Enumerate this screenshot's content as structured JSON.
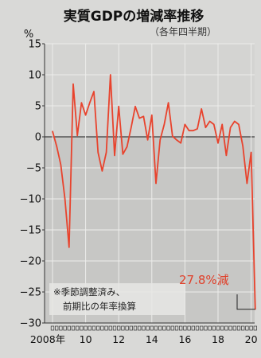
{
  "chart_data": {
    "type": "line",
    "title": "実質GDPの増減率推移",
    "subtitle": "（各年四半期）",
    "y_unit": "%",
    "ylim": [
      -30,
      15
    ],
    "y_ticks": [
      15,
      10,
      5,
      0,
      -5,
      -10,
      -15,
      -20,
      -25,
      -30
    ],
    "x_tick_labels": [
      "2008年",
      "10",
      "12",
      "14",
      "16",
      "18",
      "20"
    ],
    "x_tick_quarters": [
      0,
      8,
      16,
      24,
      32,
      40,
      48
    ],
    "grid": true,
    "series": [
      {
        "color": "#e8432d",
        "quarters": [
          "2008Q1",
          "2008Q2",
          "2008Q3",
          "2008Q4",
          "2009Q1",
          "2009Q2",
          "2009Q3",
          "2009Q4",
          "2010Q1",
          "2010Q2",
          "2010Q3",
          "2010Q4",
          "2011Q1",
          "2011Q2",
          "2011Q3",
          "2011Q4",
          "2012Q1",
          "2012Q2",
          "2012Q3",
          "2012Q4",
          "2013Q1",
          "2013Q2",
          "2013Q3",
          "2013Q4",
          "2014Q1",
          "2014Q2",
          "2014Q3",
          "2014Q4",
          "2015Q1",
          "2015Q2",
          "2015Q3",
          "2015Q4",
          "2016Q1",
          "2016Q2",
          "2016Q3",
          "2016Q4",
          "2017Q1",
          "2017Q2",
          "2017Q3",
          "2017Q4",
          "2018Q1",
          "2018Q2",
          "2018Q3",
          "2018Q4",
          "2019Q1",
          "2019Q2",
          "2019Q3",
          "2019Q4",
          "2020Q1",
          "2020Q2"
        ],
        "values": [
          0.9,
          -1.5,
          -4.5,
          -10.0,
          -17.8,
          8.5,
          0.2,
          5.5,
          3.5,
          5.5,
          7.3,
          -2.5,
          -5.5,
          -2.5,
          10.0,
          -3.0,
          4.9,
          -2.8,
          -1.6,
          1.5,
          4.9,
          3.0,
          3.3,
          -0.5,
          3.5,
          -7.5,
          -0.5,
          2.0,
          5.5,
          0.1,
          -0.5,
          -1.0,
          2.0,
          1.0,
          1.0,
          1.3,
          4.5,
          1.5,
          2.5,
          2.0,
          -1.0,
          2.0,
          -3.0,
          1.5,
          2.5,
          2.0,
          -1.5,
          -7.5,
          -2.5,
          -27.8
        ]
      }
    ],
    "annotations": [
      {
        "text": "27.8%減",
        "quarter": 49,
        "value": -27.8
      }
    ],
    "note_lines": [
      "※季節調整済み、",
      "前期比の年率換算"
    ]
  }
}
